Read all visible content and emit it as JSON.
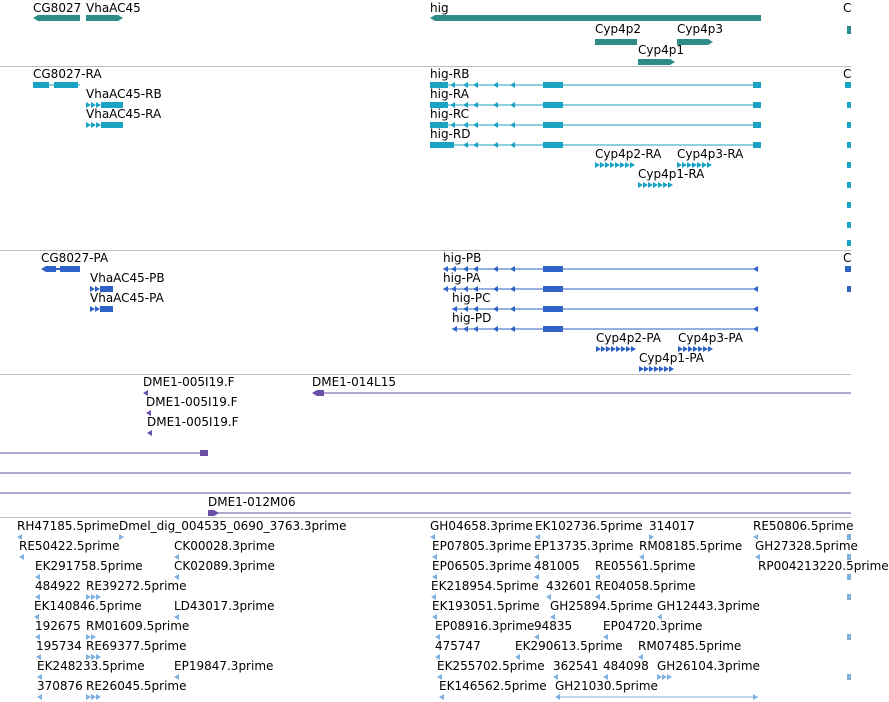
{
  "colors": {
    "gene": "#2e8b87",
    "transcript": "#1aa3c4",
    "protein": "#2f62c6",
    "clone": "#6a4fa8",
    "est": "#7fb0de",
    "separator": "#bdbdbd"
  },
  "gene_track": {
    "labels": [
      "CG8027",
      "VhaAC45",
      "hig",
      "Cyp4p2",
      "Cyp4p3",
      "Cyp4p1",
      "C"
    ]
  },
  "transcript_track": {
    "labels": [
      "CG8027-RA",
      "VhaAC45-RB",
      "VhaAC45-RA",
      "hig-RB",
      "hig-RA",
      "hig-RC",
      "hig-RD",
      "Cyp4p2-RA",
      "Cyp4p3-RA",
      "Cyp4p1-RA",
      "C"
    ]
  },
  "protein_track": {
    "labels": [
      "CG8027-PA",
      "VhaAC45-PB",
      "VhaAC45-PA",
      "hig-PB",
      "hig-PA",
      "hig-PC",
      "hig-PD",
      "Cyp4p2-PA",
      "Cyp4p3-PA",
      "Cyp4p1-PA",
      "C"
    ]
  },
  "clone_track": {
    "labels": [
      "DME1-005I19.F",
      "DME1-014L15",
      "DME1-005I19.F",
      "DME1-005I19.F",
      "DME1-012M06"
    ]
  },
  "est_track": {
    "labels": [
      "RH47185.5prime",
      "Dmel_dig_004535_0690_3763.3prime",
      "RE50422.5prime",
      "CK00028.3prime",
      "EK291758.5prime",
      "CK02089.3prime",
      "484922",
      "RE39272.5prime",
      "EK140846.5prime",
      "LD43017.3prime",
      "192675",
      "RM01609.5prime",
      "195734",
      "RE69377.5prime",
      "EK248233.5prime",
      "EP19847.3prime",
      "370876",
      "RE26045.5prime",
      "GH04658.3prime",
      "EK102736.5prime",
      "314017",
      "RE50806.5prime",
      "EP07805.3prime",
      "EP13735.3prime",
      "RM08185.5prime",
      "GH27328.5prime",
      "EP06505.3prime",
      "481005",
      "RE05561.5prime",
      "RP004213220.5prime",
      "EK218954.5prime",
      "432601",
      "RE04058.5prime",
      "EK193051.5prime",
      "GH25894.5prime",
      "GH12443.3prime",
      "EP08916.3prime",
      "94835",
      "EP04720.3prime",
      "475747",
      "EK290613.5prime",
      "RM07485.5prime",
      "EK255702.5prime",
      "362541",
      "484098",
      "GH26104.3prime",
      "EK146562.5prime",
      "GH21030.5prime"
    ]
  }
}
